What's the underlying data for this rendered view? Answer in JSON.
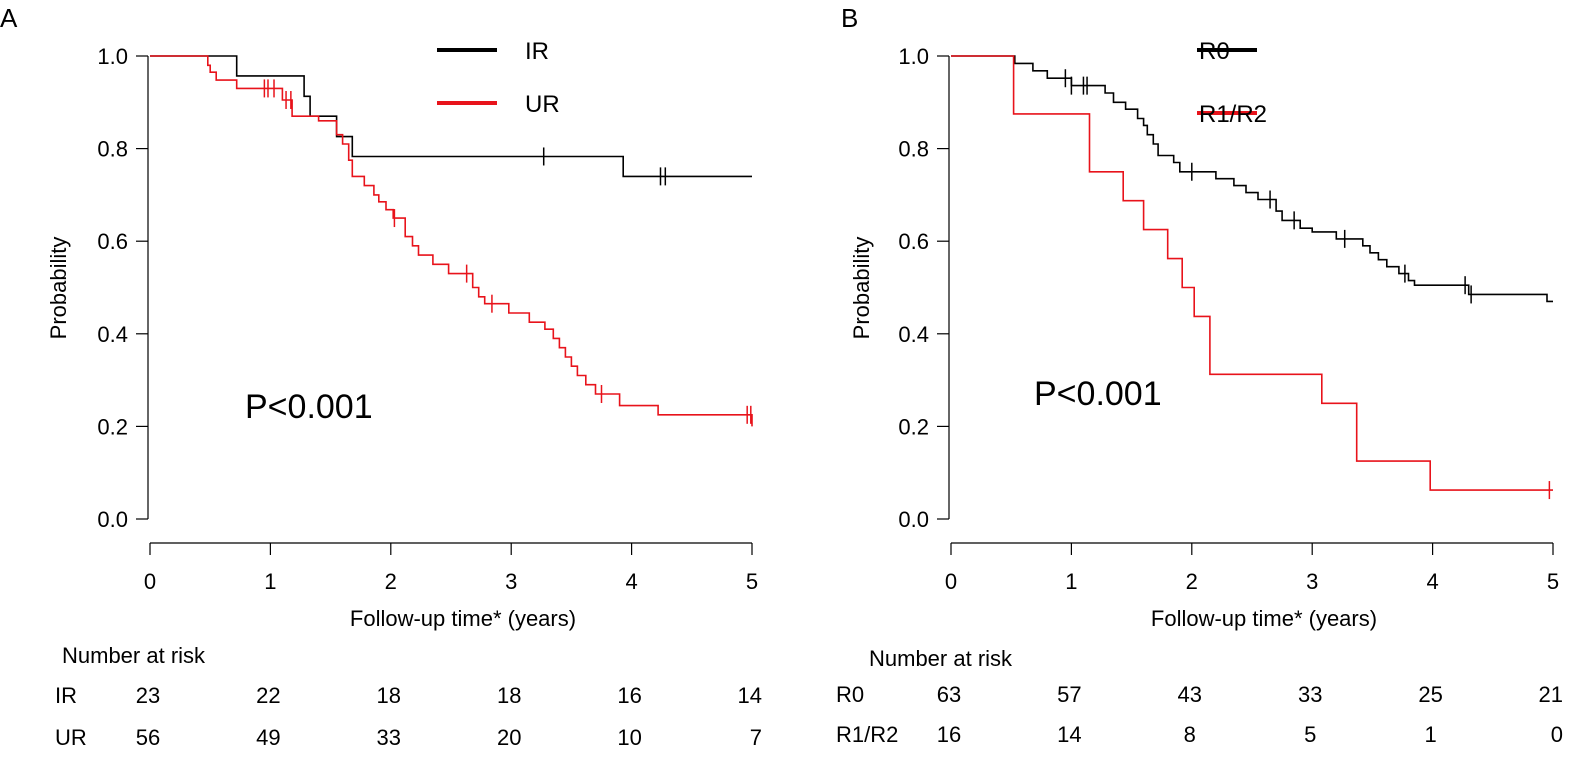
{
  "colors": {
    "black": "#000000",
    "red": "#e8131b"
  },
  "chart_data": [
    {
      "type": "line",
      "step": true,
      "panel_label": "A",
      "xlabel": "Follow-up time* (years)",
      "ylabel": "Probability",
      "xlim": [
        0,
        5
      ],
      "ylim": [
        0,
        1
      ],
      "x_ticks": [
        "0",
        "1",
        "2",
        "3",
        "4",
        "5"
      ],
      "y_ticks": [
        "0.0",
        "0.2",
        "0.4",
        "0.6",
        "0.8",
        "1.0"
      ],
      "annotation": "P<0.001",
      "legend_position": "top-right",
      "series": [
        {
          "name": "IR",
          "color": "#000000",
          "points": [
            [
              0,
              1.0
            ],
            [
              0.72,
              1.0
            ],
            [
              0.72,
              0.957
            ],
            [
              1.28,
              0.957
            ],
            [
              1.28,
              0.913
            ],
            [
              1.33,
              0.913
            ],
            [
              1.33,
              0.87
            ],
            [
              1.55,
              0.87
            ],
            [
              1.55,
              0.826
            ],
            [
              1.68,
              0.826
            ],
            [
              1.68,
              0.783
            ],
            [
              3.93,
              0.783
            ],
            [
              3.93,
              0.74
            ],
            [
              5.0,
              0.74
            ]
          ],
          "censor_x": [
            3.27,
            4.24,
            4.28
          ]
        },
        {
          "name": "UR",
          "color": "#e8131b",
          "points": [
            [
              0,
              1.0
            ],
            [
              0.48,
              1.0
            ],
            [
              0.48,
              0.98
            ],
            [
              0.5,
              0.98
            ],
            [
              0.5,
              0.965
            ],
            [
              0.55,
              0.965
            ],
            [
              0.55,
              0.948
            ],
            [
              0.72,
              0.948
            ],
            [
              0.72,
              0.93
            ],
            [
              1.1,
              0.93
            ],
            [
              1.1,
              0.905
            ],
            [
              1.18,
              0.905
            ],
            [
              1.18,
              0.87
            ],
            [
              1.4,
              0.87
            ],
            [
              1.4,
              0.86
            ],
            [
              1.55,
              0.86
            ],
            [
              1.55,
              0.83
            ],
            [
              1.6,
              0.83
            ],
            [
              1.6,
              0.81
            ],
            [
              1.65,
              0.81
            ],
            [
              1.65,
              0.775
            ],
            [
              1.68,
              0.775
            ],
            [
              1.68,
              0.74
            ],
            [
              1.78,
              0.74
            ],
            [
              1.78,
              0.72
            ],
            [
              1.86,
              0.72
            ],
            [
              1.86,
              0.7
            ],
            [
              1.9,
              0.7
            ],
            [
              1.9,
              0.685
            ],
            [
              1.96,
              0.685
            ],
            [
              1.96,
              0.668
            ],
            [
              2.02,
              0.668
            ],
            [
              2.02,
              0.65
            ],
            [
              2.12,
              0.65
            ],
            [
              2.12,
              0.61
            ],
            [
              2.18,
              0.61
            ],
            [
              2.18,
              0.59
            ],
            [
              2.23,
              0.59
            ],
            [
              2.23,
              0.57
            ],
            [
              2.35,
              0.57
            ],
            [
              2.35,
              0.55
            ],
            [
              2.48,
              0.55
            ],
            [
              2.48,
              0.53
            ],
            [
              2.68,
              0.53
            ],
            [
              2.68,
              0.5
            ],
            [
              2.73,
              0.5
            ],
            [
              2.73,
              0.48
            ],
            [
              2.78,
              0.48
            ],
            [
              2.78,
              0.465
            ],
            [
              2.98,
              0.465
            ],
            [
              2.98,
              0.445
            ],
            [
              3.15,
              0.445
            ],
            [
              3.15,
              0.425
            ],
            [
              3.28,
              0.425
            ],
            [
              3.28,
              0.41
            ],
            [
              3.35,
              0.41
            ],
            [
              3.35,
              0.39
            ],
            [
              3.4,
              0.39
            ],
            [
              3.4,
              0.37
            ],
            [
              3.45,
              0.37
            ],
            [
              3.45,
              0.35
            ],
            [
              3.5,
              0.35
            ],
            [
              3.5,
              0.33
            ],
            [
              3.55,
              0.33
            ],
            [
              3.55,
              0.31
            ],
            [
              3.62,
              0.31
            ],
            [
              3.62,
              0.29
            ],
            [
              3.7,
              0.29
            ],
            [
              3.7,
              0.27
            ],
            [
              3.9,
              0.27
            ],
            [
              3.9,
              0.245
            ],
            [
              4.22,
              0.245
            ],
            [
              4.22,
              0.225
            ],
            [
              5.0,
              0.225
            ],
            [
              5.0,
              0.2
            ]
          ],
          "censor_x": [
            0.95,
            0.98,
            1.03,
            1.13,
            1.17,
            2.03,
            2.63,
            2.84,
            3.75,
            4.96,
            4.99
          ]
        }
      ],
      "risk_table": {
        "title": "Number at risk",
        "rows": [
          {
            "label": "IR",
            "values": [
              "23",
              "22",
              "18",
              "18",
              "16",
              "14"
            ]
          },
          {
            "label": "UR",
            "values": [
              "56",
              "49",
              "33",
              "20",
              "10",
              "7"
            ]
          }
        ]
      }
    },
    {
      "type": "line",
      "step": true,
      "panel_label": "B",
      "xlabel": "Follow-up time* (years)",
      "ylabel": "Probability",
      "xlim": [
        0,
        5
      ],
      "ylim": [
        0,
        1
      ],
      "x_ticks": [
        "0",
        "1",
        "2",
        "3",
        "4",
        "5"
      ],
      "y_ticks": [
        "0.0",
        "0.2",
        "0.4",
        "0.6",
        "0.8",
        "1.0"
      ],
      "annotation": "P<0.001",
      "legend_position": "top-right",
      "series": [
        {
          "name": "R0",
          "color": "#000000",
          "points": [
            [
              0,
              1.0
            ],
            [
              0.53,
              1.0
            ],
            [
              0.53,
              0.984
            ],
            [
              0.68,
              0.984
            ],
            [
              0.68,
              0.968
            ],
            [
              0.8,
              0.968
            ],
            [
              0.8,
              0.952
            ],
            [
              1.0,
              0.952
            ],
            [
              1.0,
              0.936
            ],
            [
              1.1,
              0.936
            ],
            [
              1.1,
              0.936
            ],
            [
              1.28,
              0.936
            ],
            [
              1.28,
              0.92
            ],
            [
              1.35,
              0.92
            ],
            [
              1.35,
              0.9
            ],
            [
              1.45,
              0.9
            ],
            [
              1.45,
              0.885
            ],
            [
              1.55,
              0.885
            ],
            [
              1.55,
              0.865
            ],
            [
              1.6,
              0.865
            ],
            [
              1.6,
              0.85
            ],
            [
              1.63,
              0.85
            ],
            [
              1.63,
              0.83
            ],
            [
              1.68,
              0.83
            ],
            [
              1.68,
              0.81
            ],
            [
              1.72,
              0.81
            ],
            [
              1.72,
              0.785
            ],
            [
              1.85,
              0.785
            ],
            [
              1.85,
              0.77
            ],
            [
              1.9,
              0.77
            ],
            [
              1.9,
              0.75
            ],
            [
              2.2,
              0.75
            ],
            [
              2.2,
              0.735
            ],
            [
              2.35,
              0.735
            ],
            [
              2.35,
              0.72
            ],
            [
              2.45,
              0.72
            ],
            [
              2.45,
              0.705
            ],
            [
              2.55,
              0.705
            ],
            [
              2.55,
              0.69
            ],
            [
              2.7,
              0.69
            ],
            [
              2.7,
              0.665
            ],
            [
              2.75,
              0.665
            ],
            [
              2.75,
              0.645
            ],
            [
              2.9,
              0.645
            ],
            [
              2.9,
              0.628
            ],
            [
              3.0,
              0.628
            ],
            [
              3.0,
              0.62
            ],
            [
              3.2,
              0.62
            ],
            [
              3.2,
              0.605
            ],
            [
              3.42,
              0.605
            ],
            [
              3.42,
              0.59
            ],
            [
              3.48,
              0.59
            ],
            [
              3.48,
              0.575
            ],
            [
              3.55,
              0.575
            ],
            [
              3.55,
              0.56
            ],
            [
              3.62,
              0.56
            ],
            [
              3.62,
              0.545
            ],
            [
              3.72,
              0.545
            ],
            [
              3.72,
              0.53
            ],
            [
              3.8,
              0.53
            ],
            [
              3.8,
              0.515
            ],
            [
              3.85,
              0.515
            ],
            [
              3.85,
              0.505
            ],
            [
              4.3,
              0.505
            ],
            [
              4.3,
              0.485
            ],
            [
              4.95,
              0.485
            ],
            [
              4.95,
              0.47
            ],
            [
              5.0,
              0.47
            ]
          ],
          "censor_x": [
            0.95,
            1.0,
            1.1,
            1.13,
            2.0,
            2.65,
            2.85,
            3.27,
            3.77,
            4.27,
            4.32
          ]
        },
        {
          "name": "R1/R2",
          "color": "#e8131b",
          "points": [
            [
              0,
              1.0
            ],
            [
              0.52,
              1.0
            ],
            [
              0.52,
              0.875
            ],
            [
              1.15,
              0.875
            ],
            [
              1.15,
              0.75
            ],
            [
              1.43,
              0.75
            ],
            [
              1.43,
              0.6875
            ],
            [
              1.6,
              0.6875
            ],
            [
              1.6,
              0.625
            ],
            [
              1.8,
              0.625
            ],
            [
              1.8,
              0.5625
            ],
            [
              1.92,
              0.5625
            ],
            [
              1.92,
              0.5
            ],
            [
              2.02,
              0.5
            ],
            [
              2.02,
              0.4375
            ],
            [
              2.15,
              0.4375
            ],
            [
              2.15,
              0.3125
            ],
            [
              3.08,
              0.3125
            ],
            [
              3.08,
              0.25
            ],
            [
              3.37,
              0.25
            ],
            [
              3.37,
              0.125
            ],
            [
              3.98,
              0.125
            ],
            [
              3.98,
              0.0625
            ],
            [
              5.0,
              0.0625
            ]
          ],
          "censor_x": [
            4.97
          ]
        }
      ],
      "risk_table": {
        "title": "Number at risk",
        "rows": [
          {
            "label": "R0",
            "values": [
              "63",
              "57",
              "43",
              "33",
              "25",
              "21"
            ]
          },
          {
            "label": "R1/R2",
            "values": [
              "16",
              "14",
              "8",
              "5",
              "1",
              "0"
            ]
          }
        ]
      }
    }
  ]
}
